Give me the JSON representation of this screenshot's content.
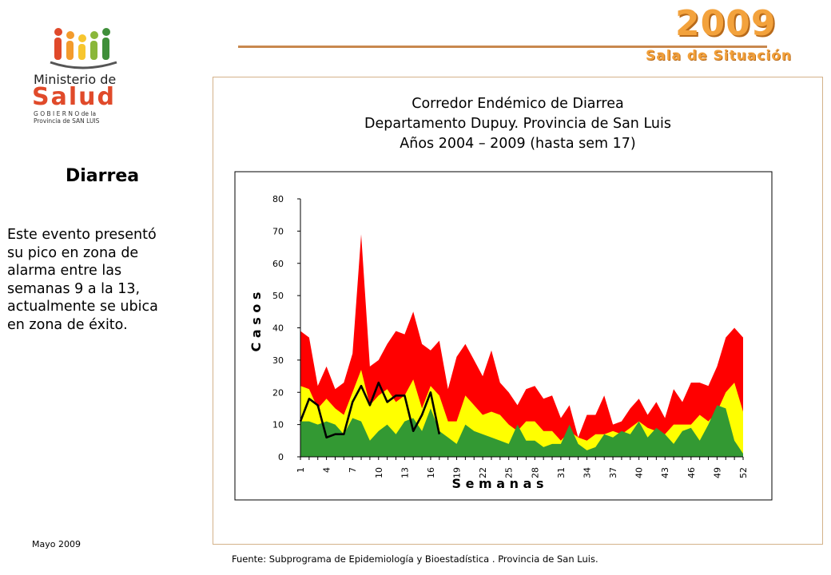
{
  "header": {
    "year": "2009",
    "subtitle": "Sala de Situación"
  },
  "logo": {
    "line1": "Ministerio de",
    "line2": "Salud",
    "line3": "G O B I E R N O de la",
    "line4": "Provincia de SAN LUIS"
  },
  "sidebar": {
    "title": "Diarrea",
    "lines": [
      "Este evento presentó",
      "su pico en zona de",
      "alarma entre las",
      "semanas 9 a la 13,",
      "actualmente se ubica",
      "en zona de éxito."
    ],
    "date": "Mayo 2009"
  },
  "footer": {
    "source": "Fuente: Subprograma de Epidemiología y Bioestadística . Provincia de San Luis."
  },
  "colors": {
    "alarm": "#ff0000",
    "security": "#ffff00",
    "success": "#339933",
    "current": "#000000",
    "accent": "#f3a23c"
  },
  "chart_data": {
    "type": "area",
    "title_lines": [
      "Corredor Endémico de Diarrea",
      "Departamento Dupuy. Provincia de San Luis",
      "Años 2004 – 2009 (hasta sem 17)"
    ],
    "xlabel": "S e m a n a s",
    "ylabel": "C a s o s",
    "ylim": [
      0,
      80
    ],
    "yticks": [
      0,
      10,
      20,
      30,
      40,
      50,
      60,
      70,
      80
    ],
    "x": [
      1,
      2,
      3,
      4,
      5,
      6,
      7,
      8,
      9,
      10,
      11,
      12,
      13,
      14,
      15,
      16,
      17,
      18,
      19,
      20,
      21,
      22,
      23,
      24,
      25,
      26,
      27,
      28,
      29,
      30,
      31,
      32,
      33,
      34,
      35,
      36,
      37,
      38,
      39,
      40,
      41,
      42,
      43,
      44,
      45,
      46,
      47,
      48,
      49,
      50,
      51,
      52
    ],
    "xtick_labels": [
      "1",
      "4",
      "7",
      "10",
      "13",
      "16",
      "19",
      "22",
      "25",
      "28",
      "31",
      "34",
      "37",
      "40",
      "43",
      "46",
      "49",
      "52"
    ],
    "series": [
      {
        "key": "alarm",
        "values": [
          39,
          37,
          22,
          28,
          21,
          23,
          32,
          69,
          28,
          30,
          35,
          39,
          38,
          45,
          35,
          33,
          36,
          21,
          31,
          35,
          30,
          25,
          33,
          23,
          20,
          16,
          21,
          22,
          18,
          19,
          12,
          16,
          6,
          13,
          13,
          19,
          10,
          11,
          15,
          18,
          13,
          17,
          12,
          21,
          17,
          23,
          23,
          22,
          28,
          37,
          40,
          37
        ]
      },
      {
        "key": "security",
        "values": [
          22,
          21,
          15,
          18,
          15,
          13,
          20,
          27,
          16,
          19,
          21,
          17,
          19,
          24,
          15,
          22,
          19,
          11,
          11,
          19,
          16,
          13,
          14,
          13,
          10,
          8,
          11,
          11,
          8,
          8,
          5,
          8,
          6,
          5,
          7,
          7,
          8,
          7,
          9,
          11,
          9,
          8,
          7,
          10,
          10,
          10,
          13,
          11,
          14,
          20,
          23,
          14
        ]
      },
      {
        "key": "success",
        "values": [
          11,
          11,
          10,
          11,
          10,
          7,
          12,
          11,
          5,
          8,
          10,
          7,
          11,
          12,
          8,
          15,
          8,
          6,
          4,
          10,
          8,
          7,
          6,
          5,
          4,
          10,
          5,
          5,
          3,
          4,
          4,
          10,
          4,
          2,
          3,
          7,
          6,
          8,
          7,
          11,
          6,
          9,
          7,
          4,
          8,
          9,
          5,
          10,
          16,
          15,
          5,
          1
        ]
      },
      {
        "key": "current",
        "x": [
          1,
          2,
          3,
          4,
          5,
          6,
          7,
          8,
          9,
          10,
          11,
          12,
          13,
          14,
          15,
          16,
          17
        ],
        "values": [
          11,
          18,
          16,
          6,
          7,
          7,
          17,
          22,
          16,
          23,
          17,
          19,
          19,
          8,
          13,
          20,
          7
        ]
      }
    ]
  }
}
